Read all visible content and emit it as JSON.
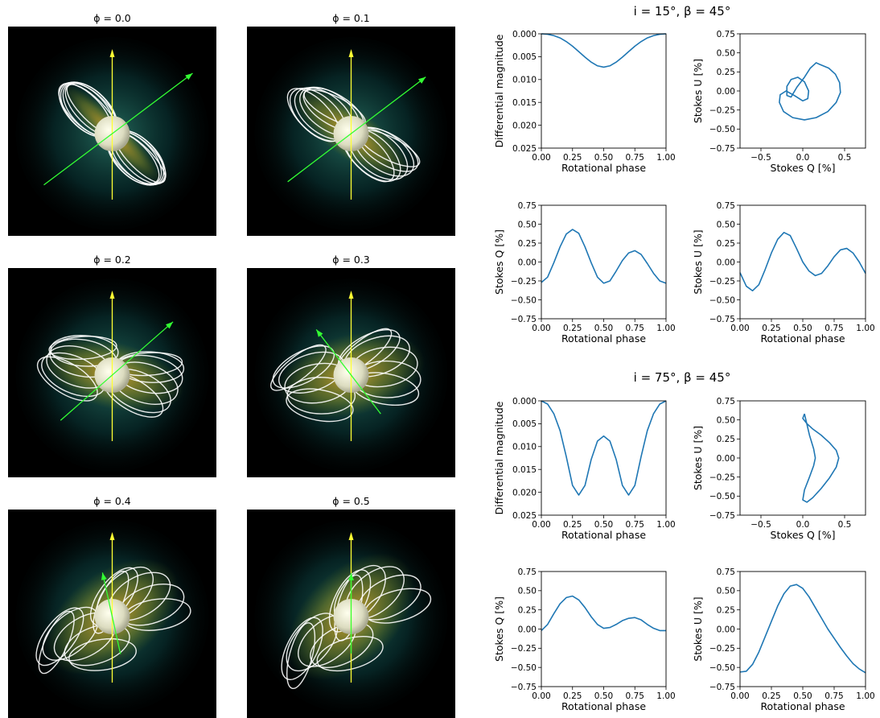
{
  "snapshots": {
    "titles": [
      "ϕ = 0.0",
      "ϕ = 0.1",
      "ϕ = 0.2",
      "ϕ = 0.3",
      "ϕ = 0.4",
      "ϕ = 0.5"
    ],
    "phases": [
      0.0,
      0.1,
      0.2,
      0.3,
      0.4,
      0.5
    ],
    "colors": {
      "background": "#000000",
      "field_lines": "#ffffff",
      "star": "#f2f2d8",
      "rotation_axis": "#ffff33",
      "magnetic_axis": "#33ff33",
      "disk_glow": "#b4a02a",
      "magnetosphere": "#0a5a5a"
    }
  },
  "groups": [
    {
      "title": "i = 15°, β = 45°"
    },
    {
      "title": "i = 75°, β = 45°"
    }
  ],
  "line_color": "#1f77b4",
  "chart_data": [
    {
      "type": "line",
      "group": 0,
      "name": "photometry-15",
      "xlabel": "Rotational phase",
      "ylabel": "Differential magnitude",
      "xlim": [
        0,
        1
      ],
      "ylim": [
        0.025,
        0.0
      ],
      "y_inverted": true,
      "xticks": [
        "0.00",
        "0.25",
        "0.50",
        "0.75",
        "1.00"
      ],
      "yticks": [
        "0.000",
        "0.005",
        "0.010",
        "0.015",
        "0.020",
        "0.025"
      ],
      "x": [
        0.0,
        0.05,
        0.1,
        0.15,
        0.2,
        0.25,
        0.3,
        0.35,
        0.4,
        0.45,
        0.5,
        0.55,
        0.6,
        0.65,
        0.7,
        0.75,
        0.8,
        0.85,
        0.9,
        0.95,
        1.0
      ],
      "y": [
        0.0,
        0.0001,
        0.0004,
        0.0009,
        0.0017,
        0.0027,
        0.0039,
        0.0051,
        0.0062,
        0.007,
        0.0073,
        0.007,
        0.0062,
        0.0051,
        0.0039,
        0.0027,
        0.0017,
        0.0009,
        0.0004,
        0.0001,
        0.0
      ]
    },
    {
      "type": "line",
      "group": 0,
      "name": "qu-loop-15",
      "xlabel": "Stokes Q [%]",
      "ylabel": "Stokes U [%]",
      "xlim": [
        -0.75,
        0.75
      ],
      "ylim": [
        -0.75,
        0.75
      ],
      "xticks": [
        "−0.5",
        "0.0",
        "0.5"
      ],
      "yticks": [
        "−0.75",
        "−0.50",
        "−0.25",
        "0.00",
        "0.25",
        "0.50",
        "0.75"
      ],
      "x": [
        0.2,
        0.31,
        0.39,
        0.44,
        0.45,
        0.4,
        0.3,
        0.16,
        0.02,
        -0.12,
        -0.23,
        -0.28,
        -0.27,
        -0.2,
        -0.1,
        0.0,
        0.06,
        0.07,
        0.02,
        -0.06,
        -0.14,
        -0.19,
        -0.19,
        -0.14,
        -0.07,
        0.02,
        0.09,
        0.16,
        0.2
      ],
      "y": [
        0.35,
        0.3,
        0.22,
        0.11,
        -0.02,
        -0.15,
        -0.27,
        -0.35,
        -0.38,
        -0.35,
        -0.27,
        -0.15,
        -0.05,
        0.0,
        -0.06,
        -0.13,
        -0.1,
        0.0,
        0.12,
        0.18,
        0.15,
        0.06,
        -0.06,
        -0.08,
        0.05,
        0.18,
        0.3,
        0.37,
        0.35
      ]
    },
    {
      "type": "line",
      "group": 0,
      "name": "stokes-q-15",
      "xlabel": "Rotational phase",
      "ylabel": "Stokes Q [%]",
      "xlim": [
        0,
        1
      ],
      "ylim": [
        -0.75,
        0.75
      ],
      "xticks": [
        "0.00",
        "0.25",
        "0.50",
        "0.75",
        "1.00"
      ],
      "yticks": [
        "−0.75",
        "−0.50",
        "−0.25",
        "0.00",
        "0.25",
        "0.50",
        "0.75"
      ],
      "x": [
        0.0,
        0.05,
        0.1,
        0.15,
        0.2,
        0.25,
        0.3,
        0.35,
        0.4,
        0.45,
        0.5,
        0.55,
        0.6,
        0.65,
        0.7,
        0.75,
        0.8,
        0.85,
        0.9,
        0.95,
        1.0
      ],
      "y": [
        -0.27,
        -0.2,
        -0.01,
        0.2,
        0.37,
        0.43,
        0.38,
        0.2,
        -0.01,
        -0.2,
        -0.28,
        -0.25,
        -0.12,
        0.02,
        0.12,
        0.15,
        0.1,
        -0.02,
        -0.15,
        -0.25,
        -0.28
      ]
    },
    {
      "type": "line",
      "group": 0,
      "name": "stokes-u-15",
      "xlabel": "Rotational phase",
      "ylabel": "Stokes U [%]",
      "xlim": [
        0,
        1
      ],
      "ylim": [
        -0.75,
        0.75
      ],
      "xticks": [
        "0.00",
        "0.25",
        "0.50",
        "0.75",
        "1.00"
      ],
      "yticks": [
        "−0.75",
        "−0.50",
        "−0.25",
        "0.00",
        "0.25",
        "0.50",
        "0.75"
      ],
      "x": [
        0.0,
        0.05,
        0.1,
        0.15,
        0.2,
        0.25,
        0.3,
        0.35,
        0.4,
        0.45,
        0.5,
        0.55,
        0.6,
        0.65,
        0.7,
        0.75,
        0.8,
        0.85,
        0.9,
        0.95,
        1.0
      ],
      "y": [
        -0.14,
        -0.32,
        -0.38,
        -0.3,
        -0.1,
        0.12,
        0.3,
        0.39,
        0.35,
        0.18,
        0.0,
        -0.12,
        -0.18,
        -0.15,
        -0.05,
        0.07,
        0.16,
        0.18,
        0.12,
        0.0,
        -0.15
      ]
    },
    {
      "type": "line",
      "group": 1,
      "name": "photometry-75",
      "xlabel": "Rotational phase",
      "ylabel": "Differential magnitude",
      "xlim": [
        0,
        1
      ],
      "ylim": [
        0.025,
        0.0
      ],
      "y_inverted": true,
      "xticks": [
        "0.00",
        "0.25",
        "0.50",
        "0.75",
        "1.00"
      ],
      "yticks": [
        "0.000",
        "0.005",
        "0.010",
        "0.015",
        "0.020",
        "0.025"
      ],
      "x": [
        0.0,
        0.05,
        0.1,
        0.15,
        0.2,
        0.25,
        0.3,
        0.35,
        0.4,
        0.45,
        0.5,
        0.55,
        0.6,
        0.65,
        0.7,
        0.75,
        0.8,
        0.85,
        0.9,
        0.95,
        1.0
      ],
      "y": [
        0.0,
        0.0007,
        0.0028,
        0.0065,
        0.0122,
        0.0185,
        0.0206,
        0.0185,
        0.0128,
        0.0088,
        0.0077,
        0.0088,
        0.0128,
        0.0185,
        0.0206,
        0.0185,
        0.0122,
        0.0065,
        0.0028,
        0.0007,
        0.0
      ]
    },
    {
      "type": "line",
      "group": 1,
      "name": "qu-loop-75",
      "xlabel": "Stokes Q [%]",
      "ylabel": "Stokes U [%]",
      "xlim": [
        -0.75,
        0.75
      ],
      "ylim": [
        -0.75,
        0.75
      ],
      "xticks": [
        "−0.5",
        "0.0",
        "0.5"
      ],
      "yticks": [
        "−0.75",
        "−0.50",
        "−0.25",
        "0.00",
        "0.25",
        "0.50",
        "0.75"
      ],
      "x": [
        0.02,
        0.0,
        0.05,
        0.12,
        0.22,
        0.32,
        0.4,
        0.43,
        0.4,
        0.32,
        0.22,
        0.12,
        0.05,
        0.0,
        0.02,
        0.08,
        0.13,
        0.15,
        0.13,
        0.08,
        0.02
      ],
      "y": [
        0.58,
        0.52,
        0.45,
        0.38,
        0.3,
        0.2,
        0.1,
        0.0,
        -0.12,
        -0.26,
        -0.4,
        -0.52,
        -0.58,
        -0.55,
        -0.42,
        -0.25,
        -0.1,
        0.0,
        0.12,
        0.3,
        0.58
      ]
    },
    {
      "type": "line",
      "group": 1,
      "name": "stokes-q-75",
      "xlabel": "Rotational phase",
      "ylabel": "Stokes Q [%]",
      "xlim": [
        0,
        1
      ],
      "ylim": [
        -0.75,
        0.75
      ],
      "xticks": [
        "0.00",
        "0.25",
        "0.50",
        "0.75",
        "1.00"
      ],
      "yticks": [
        "−0.75",
        "−0.50",
        "−0.25",
        "0.00",
        "0.25",
        "0.50",
        "0.75"
      ],
      "x": [
        0.0,
        0.05,
        0.1,
        0.15,
        0.2,
        0.25,
        0.3,
        0.35,
        0.4,
        0.45,
        0.5,
        0.55,
        0.6,
        0.65,
        0.7,
        0.75,
        0.8,
        0.85,
        0.9,
        0.95,
        1.0
      ],
      "y": [
        -0.02,
        0.06,
        0.2,
        0.33,
        0.41,
        0.43,
        0.38,
        0.28,
        0.16,
        0.06,
        0.01,
        0.02,
        0.06,
        0.11,
        0.14,
        0.15,
        0.12,
        0.06,
        0.01,
        -0.02,
        -0.02
      ]
    },
    {
      "type": "line",
      "group": 1,
      "name": "stokes-u-75",
      "xlabel": "Rotational phase",
      "ylabel": "Stokes U [%]",
      "xlim": [
        0,
        1
      ],
      "ylim": [
        -0.75,
        0.75
      ],
      "xticks": [
        "0.00",
        "0.25",
        "0.50",
        "0.75",
        "1.00"
      ],
      "yticks": [
        "−0.75",
        "−0.50",
        "−0.25",
        "0.00",
        "0.25",
        "0.50",
        "0.75"
      ],
      "x": [
        0.0,
        0.05,
        0.1,
        0.15,
        0.2,
        0.25,
        0.3,
        0.35,
        0.4,
        0.45,
        0.5,
        0.55,
        0.6,
        0.65,
        0.7,
        0.75,
        0.8,
        0.85,
        0.9,
        0.95,
        1.0
      ],
      "y": [
        -0.56,
        -0.55,
        -0.46,
        -0.3,
        -0.1,
        0.1,
        0.3,
        0.46,
        0.56,
        0.58,
        0.53,
        0.42,
        0.28,
        0.14,
        0.0,
        -0.12,
        -0.24,
        -0.35,
        -0.45,
        -0.52,
        -0.57
      ]
    }
  ]
}
